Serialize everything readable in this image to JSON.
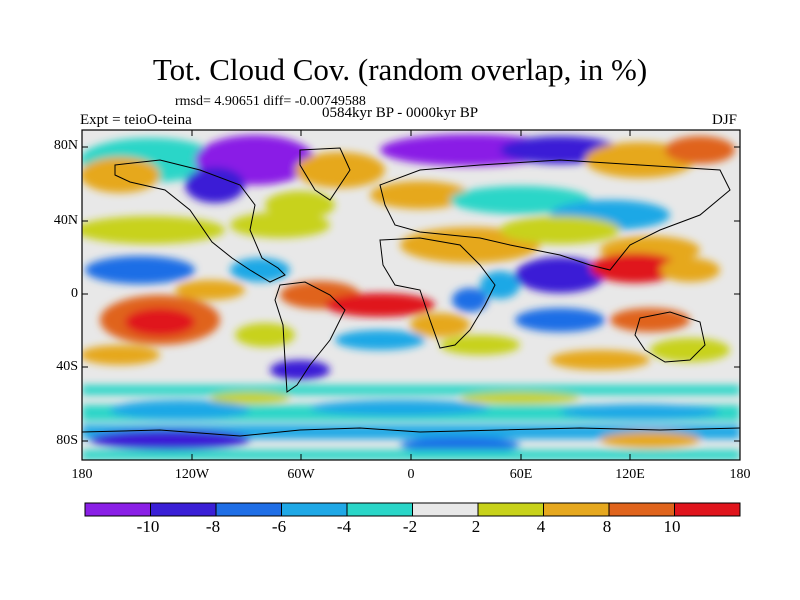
{
  "title": "Tot. Cloud Cov. (random overlap, in %)",
  "stats": "rmsd= 4.90651 diff= -0.00749588",
  "experiment": "Expt = teioO-teina",
  "period": "0584kyr BP - 0000kyr BP",
  "season": "DJF",
  "lat_labels": [
    "80N",
    "40N",
    "0",
    "40S",
    "80S"
  ],
  "lon_labels": [
    "180",
    "120W",
    "60W",
    "0",
    "60E",
    "120E",
    "180"
  ],
  "colorbar": {
    "labels": [
      "-10",
      "-8",
      "-6",
      "-4",
      "-2",
      "2",
      "4",
      "8",
      "10"
    ],
    "colors": [
      "#8a1fe6",
      "#3a1fd6",
      "#1f6ee6",
      "#1fa8e6",
      "#2ad6c8",
      "#e8e8e8",
      "#c8d21a",
      "#e6a81f",
      "#e0641c",
      "#e0141c"
    ]
  }
}
